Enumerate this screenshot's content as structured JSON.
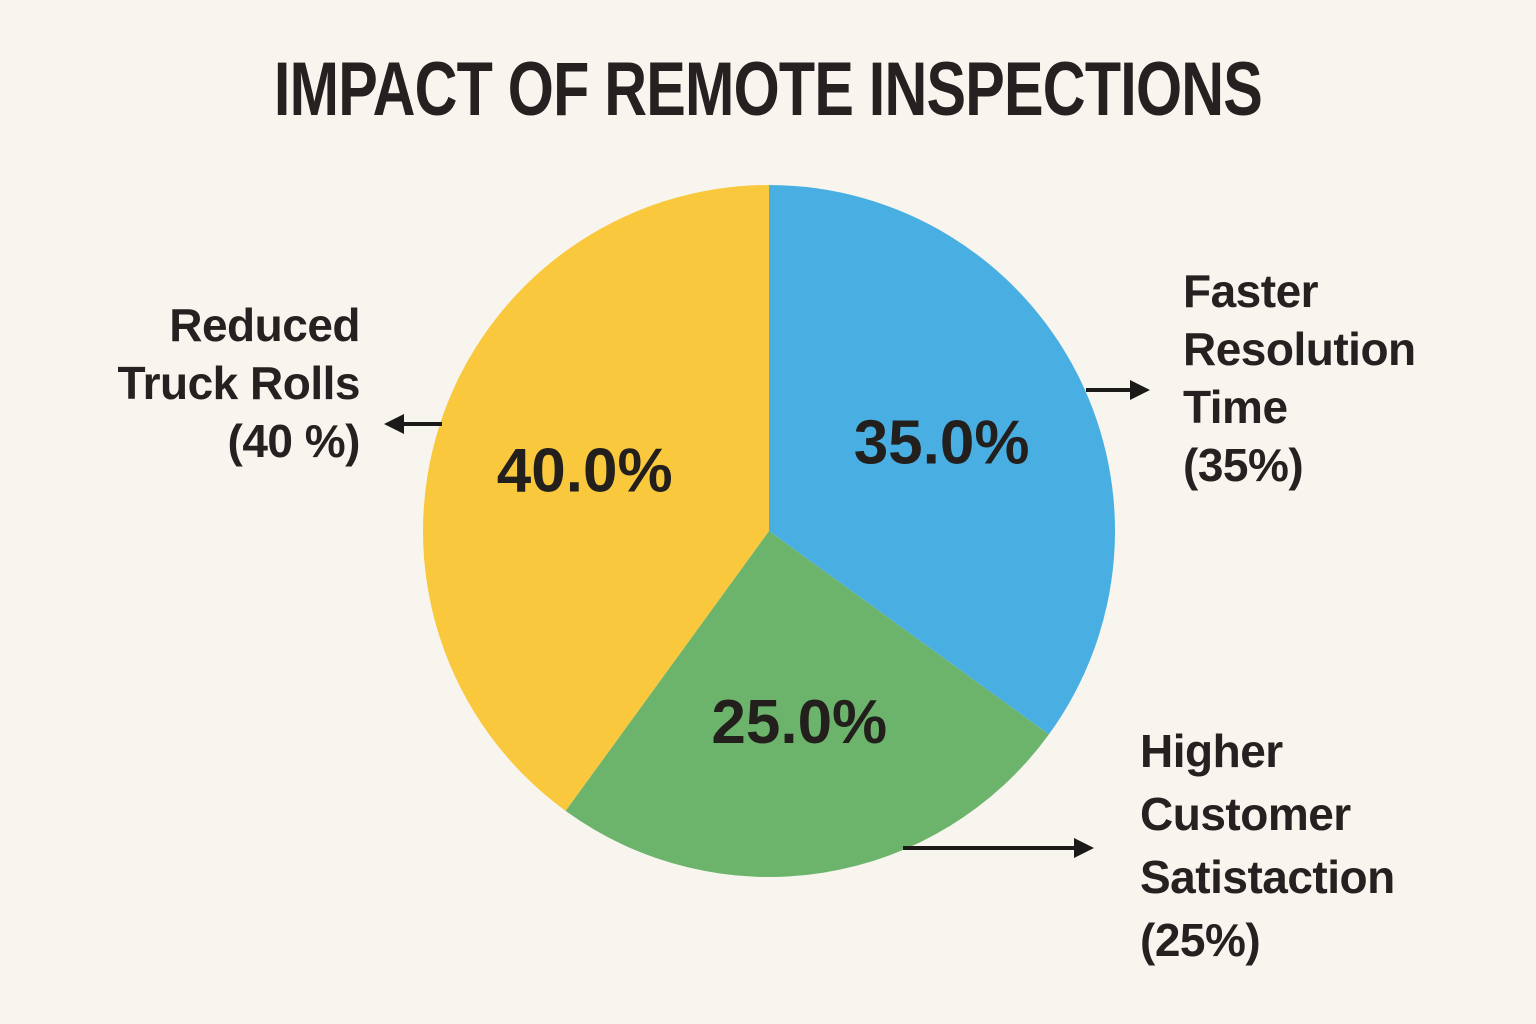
{
  "title": "IMPACT OF REMOTE INSPECTIONS",
  "colors": {
    "background": "#F8F5EF",
    "text": "#242120",
    "arrow": "#1C1A18"
  },
  "chart_data": {
    "type": "pie",
    "title": "IMPACT OF REMOTE INSPECTIONS",
    "start_angle": "12 o'clock",
    "direction": "clockwise",
    "legend_position": "none",
    "slices": [
      {
        "id": "faster-resolution-time",
        "label": "Faster Resolution Time",
        "value": 35.0,
        "inside_label": "35.0%",
        "color": "#49AFE3"
      },
      {
        "id": "higher-customer-satistaction",
        "label": "Higher Customer Satistaction",
        "value": 25.0,
        "inside_label": "25.0%",
        "color": "#6CB46C"
      },
      {
        "id": "reduced-truck-rolls",
        "label": "Reduced Truck Rolls",
        "value": 40.0,
        "inside_label": "40.0%",
        "color": "#F9C83D"
      }
    ],
    "callouts": [
      {
        "for": "faster-resolution-time",
        "position": "right",
        "lines": [
          "Faster",
          "Resolution",
          "Time",
          "(35%)"
        ]
      },
      {
        "for": "reduced-truck-rolls",
        "position": "left",
        "lines": [
          "Reduced",
          "Truck Rolls",
          "(40 %)"
        ]
      },
      {
        "for": "higher-customer-satistaction",
        "position": "bottom-right",
        "lines": [
          "Higher",
          "Customer",
          "Satistaction",
          "(25%)"
        ]
      }
    ]
  }
}
